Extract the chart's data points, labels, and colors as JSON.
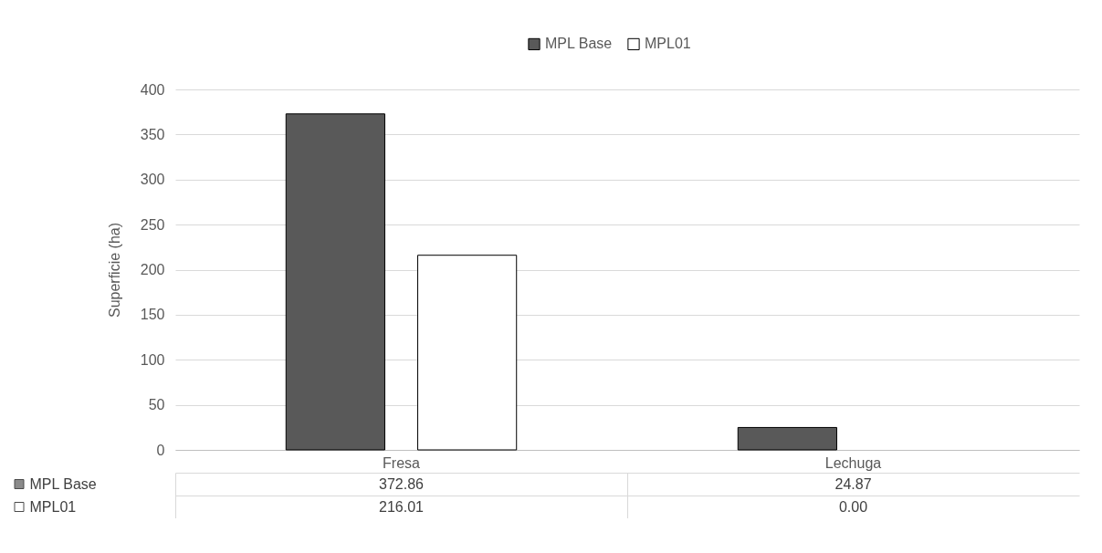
{
  "chart_data": {
    "type": "bar",
    "ylabel": "Superficie (ha)",
    "categories": [
      "Fresa",
      "Lechuga"
    ],
    "series": [
      {
        "name": "MPL Base",
        "color": "#595959",
        "values": [
          372.86,
          24.87
        ],
        "value_labels": [
          "372.86",
          "24.87"
        ]
      },
      {
        "name": "MPL01",
        "color": "#ffffff",
        "values": [
          216.01,
          0.0
        ],
        "value_labels": [
          "216.01",
          "0.00"
        ]
      }
    ],
    "ylim": [
      0,
      400
    ],
    "yticks": [
      0,
      50,
      100,
      150,
      200,
      250,
      300,
      350,
      400
    ],
    "grid": "y",
    "legend": "top"
  }
}
